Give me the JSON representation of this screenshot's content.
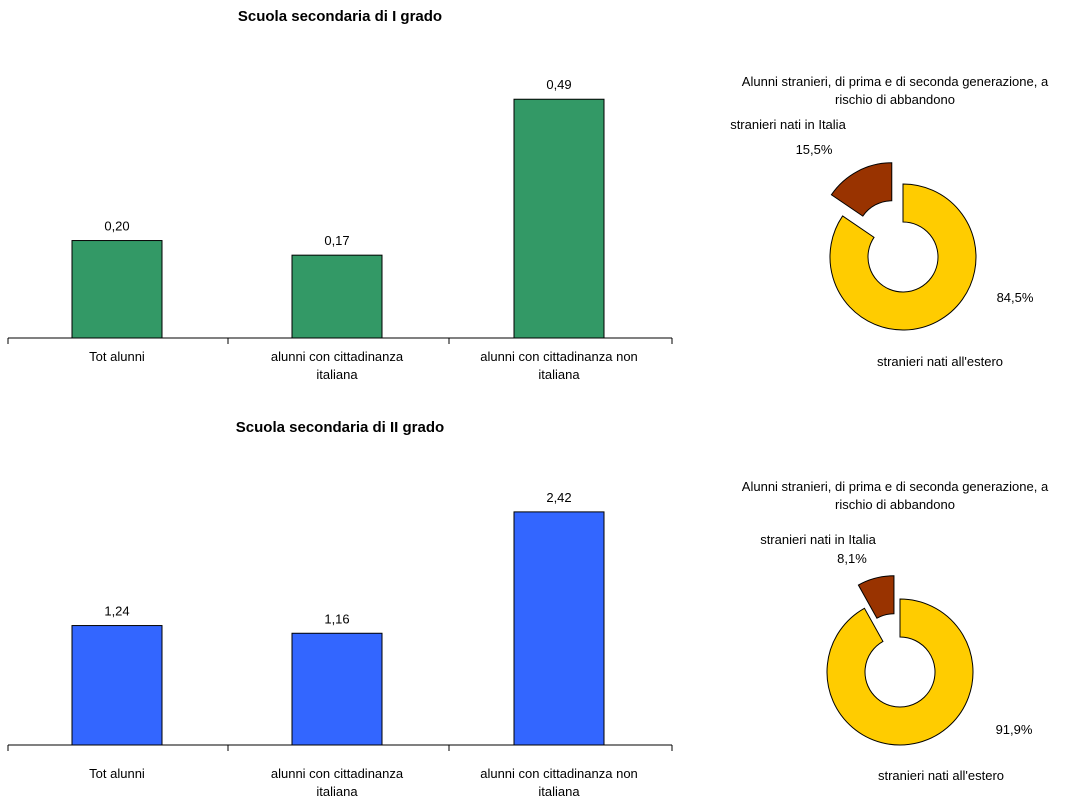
{
  "chart_data": [
    {
      "type": "bar",
      "title": "Scuola secondaria di I grado",
      "categories": [
        [
          "Tot alunni"
        ],
        [
          "alunni con cittadinanza",
          "italiana"
        ],
        [
          "alunni con cittadinanza non",
          "italiana"
        ]
      ],
      "values": [
        0.2,
        0.17,
        0.49
      ],
      "value_labels": [
        "0,20",
        "0,17",
        "0,49"
      ],
      "ylim": [
        0,
        0.55
      ],
      "color": "#339966"
    },
    {
      "type": "pie",
      "style": "exploded-donut",
      "title": [
        "Alunni stranieri, di prima e di seconda generazione, a",
        "rischio di abbandono"
      ],
      "slices": [
        {
          "name": "stranieri nati all'estero",
          "value": 84.5,
          "label": "84,5%",
          "color": "#ffcc00"
        },
        {
          "name": "stranieri nati in Italia",
          "value": 15.5,
          "label": "15,5%",
          "color": "#993300"
        }
      ]
    },
    {
      "type": "bar",
      "title": "Scuola secondaria di II grado",
      "categories": [
        [
          "Tot alunni"
        ],
        [
          "alunni con cittadinanza",
          "italiana"
        ],
        [
          "alunni con cittadinanza non",
          "italiana"
        ]
      ],
      "values": [
        1.24,
        1.16,
        2.42
      ],
      "value_labels": [
        "1,24",
        "1,16",
        "2,42"
      ],
      "ylim": [
        0,
        2.72
      ],
      "color": "#3366ff"
    },
    {
      "type": "pie",
      "style": "exploded-donut",
      "title": [
        "Alunni stranieri, di prima e di seconda generazione, a",
        "rischio di abbandono"
      ],
      "slices": [
        {
          "name": "stranieri nati all'estero",
          "value": 91.9,
          "label": "91,9%",
          "color": "#ffcc00"
        },
        {
          "name": "stranieri nati in Italia",
          "value": 8.1,
          "label": "8,1%",
          "color": "#993300"
        }
      ]
    }
  ]
}
